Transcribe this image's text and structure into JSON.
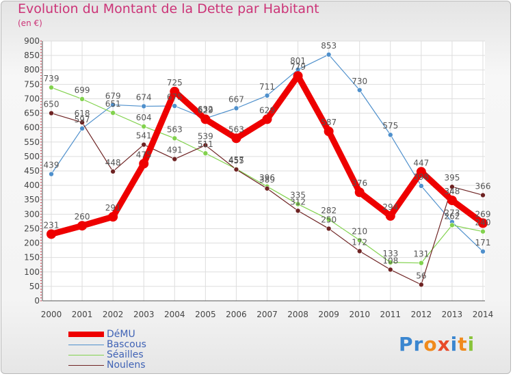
{
  "title": "Evolution du Montant de la Dette par Habitant",
  "subtitle": "(en €)",
  "logo": {
    "text": "Proxiti",
    "letter_colors": [
      "#3a86d0",
      "#3a86d0",
      "#f08a1c",
      "#e84a2a",
      "#3a86d0",
      "#f08a1c",
      "#89c43b"
    ]
  },
  "chart_data": {
    "type": "line",
    "x": [
      "2000",
      "2001",
      "2002",
      "2003",
      "2004",
      "2005",
      "2006",
      "2007",
      "2008",
      "2009",
      "2010",
      "2011",
      "2012",
      "2013",
      "2014"
    ],
    "ylim": [
      0,
      900
    ],
    "yticks": [
      "0",
      "50",
      "100",
      "150",
      "200",
      "250",
      "300",
      "350",
      "400",
      "450",
      "500",
      "550",
      "600",
      "650",
      "700",
      "750",
      "800",
      "850",
      "900"
    ],
    "grid": true,
    "legend_position": "bottom-left",
    "series": [
      {
        "name": "DéMU",
        "color": "#ee0000",
        "values": [
          231,
          260,
          291,
          475,
          725,
          629,
          563,
          629,
          779,
          587,
          376,
          294,
          447,
          348,
          269
        ]
      },
      {
        "name": "Bascous",
        "color": "#4f90cc",
        "values": [
          439,
          597,
          679,
          674,
          675,
          632,
          667,
          711,
          801,
          853,
          730,
          575,
          398,
          273,
          171
        ]
      },
      {
        "name": "Séailles",
        "color": "#82d24e",
        "values": [
          739,
          699,
          651,
          604,
          563,
          511,
          457,
          396,
          335,
          282,
          210,
          133,
          131,
          262,
          240
        ]
      },
      {
        "name": "Noulens",
        "color": "#6e2323",
        "values": [
          650,
          618,
          448,
          541,
          491,
          539,
          455,
          389,
          312,
          250,
          172,
          108,
          56,
          395,
          366
        ]
      }
    ],
    "data_labels": [
      [
        "231",
        "260",
        "291",
        "475",
        "725",
        "629",
        "563",
        "629",
        "779",
        "587",
        "376",
        "294",
        "447",
        "348",
        "269"
      ],
      [
        "439",
        "597",
        "679",
        "674",
        "675",
        "632",
        "667",
        "711",
        "801",
        "853",
        "730",
        "575",
        "398",
        "273",
        "171"
      ],
      [
        "739",
        "699",
        "651",
        "604",
        "563",
        "511",
        "457",
        "396",
        "335",
        "282",
        "210",
        "133",
        "131",
        "262",
        "240"
      ],
      [
        "650",
        "618",
        "448",
        "541",
        "491",
        "539",
        "455",
        "389",
        "312",
        "250",
        "172",
        "108",
        "56",
        "395",
        "366"
      ]
    ]
  }
}
